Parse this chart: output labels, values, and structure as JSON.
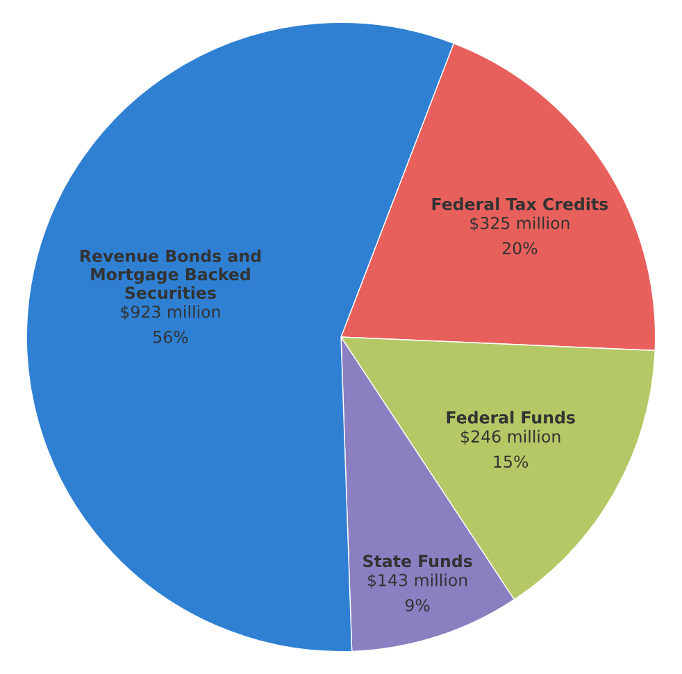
{
  "chart_data": {
    "type": "pie",
    "categories": [
      "Federal Tax Credits",
      "Federal Funds",
      "State Funds",
      "Revenue Bonds and\nMortgage Backed\nSecurities"
    ],
    "values": [
      325,
      246,
      143,
      923
    ],
    "value_labels": [
      "$325 million",
      "$246 million",
      "$143 million",
      "$923 million"
    ],
    "annotations": [
      "20%",
      "15%",
      "9%",
      "56%"
    ],
    "colors": [
      "#e8605c",
      "#b4c865",
      "#8b7fc2",
      "#2f80d3"
    ],
    "legend": false
  }
}
